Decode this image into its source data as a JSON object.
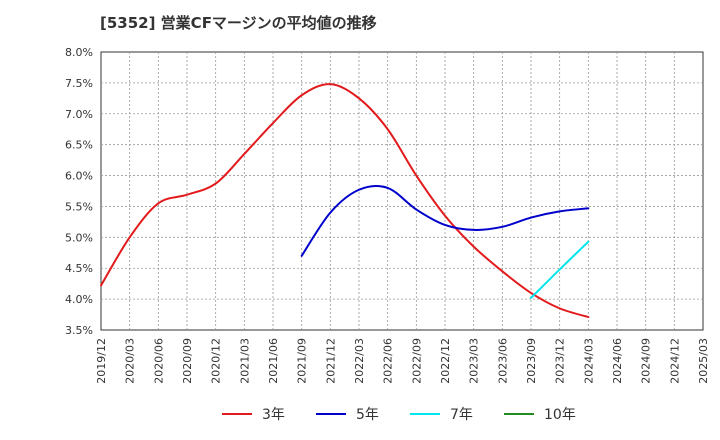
{
  "chart_data": {
    "type": "line",
    "title": "[5352]  営業CFマージンの平均値の推移",
    "xlabel": "",
    "ylabel": "",
    "ylim": [
      3.5,
      8.0
    ],
    "ytick_step": 0.5,
    "y_unit": "%",
    "grid": true,
    "legend_position": "bottom",
    "x_ticks": [
      "2019/12",
      "2020/03",
      "2020/06",
      "2020/09",
      "2020/12",
      "2021/03",
      "2021/06",
      "2021/09",
      "2021/12",
      "2022/03",
      "2022/06",
      "2022/09",
      "2022/12",
      "2023/03",
      "2023/06",
      "2023/09",
      "2023/12",
      "2024/03",
      "2024/06",
      "2024/09",
      "2024/12",
      "2025/03"
    ],
    "series": [
      {
        "name": "3年",
        "color": "#e31a1c",
        "points": [
          [
            "2019/12",
            4.22
          ],
          [
            "2020/03",
            5.0
          ],
          [
            "2020/06",
            5.55
          ],
          [
            "2020/09",
            5.69
          ],
          [
            "2020/12",
            5.87
          ],
          [
            "2021/03",
            6.35
          ],
          [
            "2021/06",
            6.85
          ],
          [
            "2021/09",
            7.3
          ],
          [
            "2021/12",
            7.48
          ],
          [
            "2022/03",
            7.25
          ],
          [
            "2022/06",
            6.75
          ],
          [
            "2022/09",
            6.0
          ],
          [
            "2022/12",
            5.35
          ],
          [
            "2023/03",
            4.85
          ],
          [
            "2023/06",
            4.45
          ],
          [
            "2023/09",
            4.1
          ],
          [
            "2023/12",
            3.85
          ],
          [
            "2024/03",
            3.71
          ]
        ]
      },
      {
        "name": "5年",
        "color": "#0000cc",
        "points": [
          [
            "2021/09",
            4.7
          ],
          [
            "2021/12",
            5.4
          ],
          [
            "2022/03",
            5.77
          ],
          [
            "2022/06",
            5.8
          ],
          [
            "2022/09",
            5.45
          ],
          [
            "2022/12",
            5.2
          ],
          [
            "2023/03",
            5.12
          ],
          [
            "2023/06",
            5.17
          ],
          [
            "2023/09",
            5.32
          ],
          [
            "2023/12",
            5.42
          ],
          [
            "2024/03",
            5.47
          ]
        ]
      },
      {
        "name": "7年",
        "color": "#00e5ee",
        "points": [
          [
            "2023/09",
            4.02
          ],
          [
            "2023/12",
            4.48
          ],
          [
            "2024/03",
            4.93
          ]
        ]
      },
      {
        "name": "10年",
        "color": "#228b22",
        "points": []
      }
    ]
  }
}
